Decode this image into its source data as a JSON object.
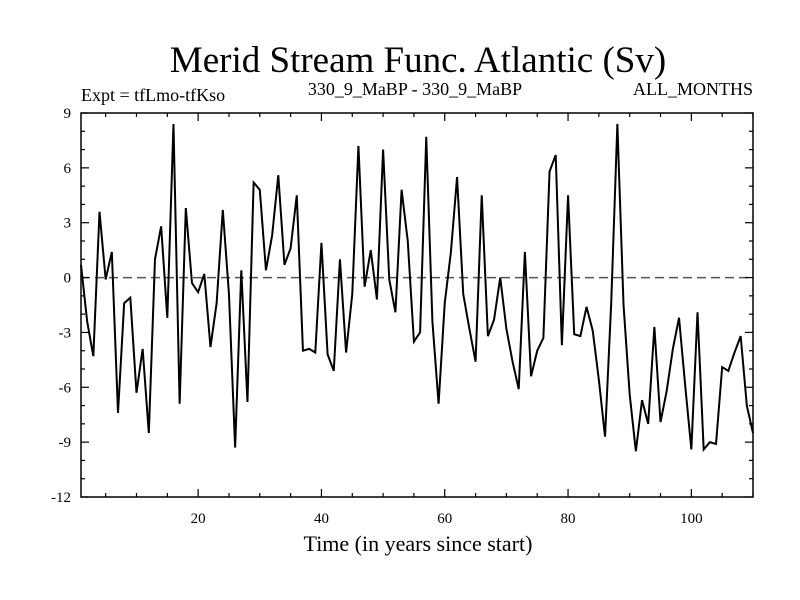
{
  "chart_data": {
    "type": "line",
    "title": "Merid Stream Func. Atlantic (Sv)",
    "subtitle_left": "Expt = tfLmo-tfKso",
    "subtitle_center": "330_9_MaBP - 330_9_MaBP",
    "subtitle_right": "ALL_MONTHS",
    "xlabel": "Time (in years since start)",
    "ylabel": "",
    "xlim": [
      1,
      110
    ],
    "ylim": [
      -12,
      9
    ],
    "xticks": [
      20,
      40,
      60,
      80,
      100
    ],
    "yticks": [
      9,
      6,
      3,
      0,
      -3,
      -6,
      -9,
      -12
    ],
    "xtick_labels": [
      "20",
      "40",
      "60",
      "80",
      "100"
    ],
    "ytick_labels": [
      "9",
      "6",
      "3",
      "0",
      "-3",
      "-6",
      "-9",
      "-12"
    ],
    "reference_line": {
      "y": 0,
      "style": "dashed"
    },
    "grid": false,
    "line_color": "#000000",
    "series": [
      {
        "name": "Merid Stream Func. Atlantic",
        "x": [
          1,
          2,
          3,
          4,
          5,
          6,
          7,
          8,
          9,
          10,
          11,
          12,
          13,
          14,
          15,
          16,
          17,
          18,
          19,
          20,
          21,
          22,
          23,
          24,
          25,
          26,
          27,
          28,
          29,
          30,
          31,
          32,
          33,
          34,
          35,
          36,
          37,
          38,
          39,
          40,
          41,
          42,
          43,
          44,
          45,
          46,
          47,
          48,
          49,
          50,
          51,
          52,
          53,
          54,
          55,
          56,
          57,
          58,
          59,
          60,
          61,
          62,
          63,
          64,
          65,
          66,
          67,
          68,
          69,
          70,
          71,
          72,
          73,
          74,
          75,
          76,
          77,
          78,
          79,
          80,
          81,
          82,
          83,
          84,
          85,
          86,
          87,
          88,
          89,
          90,
          91,
          92,
          93,
          94,
          95,
          96,
          97,
          98,
          99,
          100,
          101,
          102,
          103,
          104,
          105,
          106,
          107,
          108,
          109,
          110
        ],
        "y": [
          0.7,
          -2.4,
          -4.3,
          3.6,
          -0.1,
          1.4,
          -7.4,
          -1.4,
          -1.1,
          -6.3,
          -3.9,
          -8.5,
          1.0,
          2.8,
          -2.2,
          8.4,
          -6.9,
          3.8,
          -0.3,
          -0.8,
          0.2,
          -3.8,
          -1.4,
          3.7,
          -0.9,
          -9.3,
          0.4,
          -6.8,
          5.2,
          4.8,
          0.4,
          2.3,
          5.6,
          0.7,
          1.6,
          4.5,
          -4.0,
          -3.9,
          -4.1,
          1.9,
          -4.2,
          -5.1,
          1.0,
          -4.1,
          -0.9,
          7.2,
          -0.5,
          1.5,
          -1.2,
          7.0,
          -0.1,
          -1.9,
          4.8,
          2.0,
          -3.5,
          -3.0,
          7.7,
          -2.4,
          -6.9,
          -1.4,
          1.4,
          5.5,
          -0.9,
          -2.8,
          -4.6,
          4.5,
          -3.2,
          -2.3,
          0.0,
          -2.8,
          -4.6,
          -6.1,
          1.4,
          -5.4,
          -4.0,
          -3.3,
          5.8,
          6.7,
          -3.7,
          4.5,
          -3.1,
          -3.2,
          -1.6,
          -2.9,
          -5.6,
          -8.7,
          -1.4,
          8.4,
          -1.5,
          -6.4,
          -9.5,
          -6.7,
          -8.0,
          -2.7,
          -7.9,
          -6.2,
          -3.9,
          -2.2,
          -5.9,
          -9.4,
          -1.9,
          -9.4,
          -9.0,
          -9.1,
          -4.9,
          -5.1,
          -4.1,
          -3.2,
          -7.0,
          -8.5
        ]
      }
    ]
  }
}
